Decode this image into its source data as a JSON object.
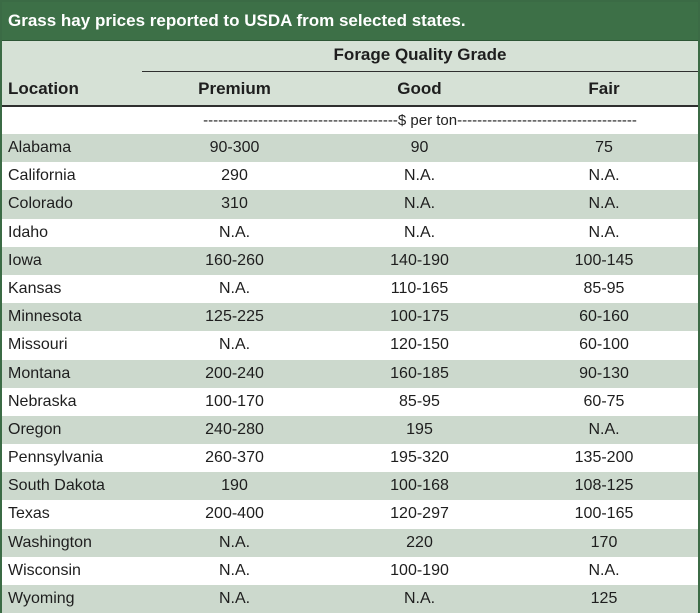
{
  "title": "Grass hay prices reported to USDA from selected states.",
  "group_header": "Forage Quality Grade",
  "columns": {
    "location": "Location",
    "premium": "Premium",
    "good": "Good",
    "fair": "Fair"
  },
  "units": "---------------------------------------$ per ton------------------------------------",
  "rows": [
    {
      "location": "Alabama",
      "premium": "90-300",
      "good": "90",
      "fair": "75"
    },
    {
      "location": "California",
      "premium": "290",
      "good": "N.A.",
      "fair": "N.A."
    },
    {
      "location": "Colorado",
      "premium": "310",
      "good": "N.A.",
      "fair": "N.A."
    },
    {
      "location": "Idaho",
      "premium": "N.A.",
      "good": "N.A.",
      "fair": "N.A."
    },
    {
      "location": "Iowa",
      "premium": "160-260",
      "good": "140-190",
      "fair": "100-145"
    },
    {
      "location": "Kansas",
      "premium": "N.A.",
      "good": "110-165",
      "fair": "85-95"
    },
    {
      "location": "Minnesota",
      "premium": "125-225",
      "good": "100-175",
      "fair": "60-160"
    },
    {
      "location": "Missouri",
      "premium": "N.A.",
      "good": "120-150",
      "fair": "60-100"
    },
    {
      "location": "Montana",
      "premium": "200-240",
      "good": "160-185",
      "fair": "90-130"
    },
    {
      "location": "Nebraska",
      "premium": "100-170",
      "good": "85-95",
      "fair": "60-75"
    },
    {
      "location": "Oregon",
      "premium": "240-280",
      "good": "195",
      "fair": "N.A."
    },
    {
      "location": "Pennsylvania",
      "premium": "260-370",
      "good": "195-320",
      "fair": "135-200"
    },
    {
      "location": "South Dakota",
      "premium": "190",
      "good": "100-168",
      "fair": "108-125"
    },
    {
      "location": "Texas",
      "premium": "200-400",
      "good": "120-297",
      "fair": "100-165"
    },
    {
      "location": "Washington",
      "premium": "N.A.",
      "good": "220",
      "fair": "170"
    },
    {
      "location": "Wisconsin",
      "premium": "N.A.",
      "good": "100-190",
      "fair": "N.A."
    },
    {
      "location": "Wyoming",
      "premium": "N.A.",
      "good": "N.A.",
      "fair": "125"
    }
  ]
}
